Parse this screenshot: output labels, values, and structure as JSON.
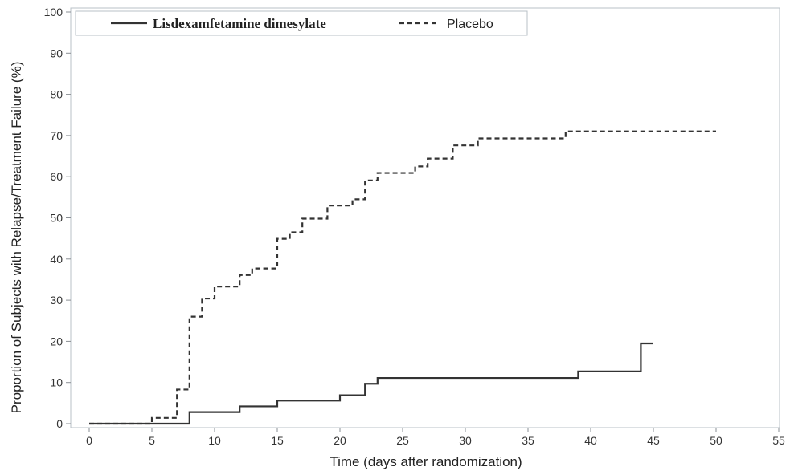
{
  "chart_data": {
    "type": "line",
    "title": "",
    "xlabel": "Time (days after randomization)",
    "ylabel": "Proportion of Subjects with Relapse/Treatment Failure (%)",
    "xlim": [
      0,
      55
    ],
    "ylim": [
      0,
      100
    ],
    "x_ticks": [
      0,
      5,
      10,
      15,
      20,
      25,
      30,
      35,
      40,
      45,
      50,
      55
    ],
    "y_ticks": [
      0,
      10,
      20,
      30,
      40,
      50,
      60,
      70,
      80,
      90,
      100
    ],
    "grid": false,
    "legend_position": "top-left",
    "step": true,
    "series": [
      {
        "name": "Lisdexamfetamine dimesylate",
        "line_style": "solid",
        "color": "#333333",
        "points": [
          [
            0,
            0
          ],
          [
            8,
            0
          ],
          [
            8,
            2.8
          ],
          [
            12,
            2.8
          ],
          [
            12,
            4.2
          ],
          [
            15,
            4.2
          ],
          [
            15,
            5.6
          ],
          [
            20,
            5.6
          ],
          [
            20,
            6.9
          ],
          [
            22,
            6.9
          ],
          [
            22,
            9.7
          ],
          [
            23,
            9.7
          ],
          [
            23,
            11.1
          ],
          [
            39,
            11.1
          ],
          [
            39,
            12.7
          ],
          [
            44,
            12.7
          ],
          [
            44,
            19.5
          ],
          [
            45,
            19.5
          ]
        ]
      },
      {
        "name": "Placebo",
        "line_style": "dashed",
        "color": "#333333",
        "points": [
          [
            0,
            0
          ],
          [
            5,
            0
          ],
          [
            5,
            1.4
          ],
          [
            7,
            1.4
          ],
          [
            7,
            8.3
          ],
          [
            8,
            8.3
          ],
          [
            8,
            26
          ],
          [
            9,
            26
          ],
          [
            9,
            30.4
          ],
          [
            10,
            30.4
          ],
          [
            10,
            33.3
          ],
          [
            12,
            33.3
          ],
          [
            12,
            36.1
          ],
          [
            13,
            36.1
          ],
          [
            13,
            37.7
          ],
          [
            15,
            37.7
          ],
          [
            15,
            44.9
          ],
          [
            16,
            44.9
          ],
          [
            16,
            46.5
          ],
          [
            17,
            46.5
          ],
          [
            17,
            49.8
          ],
          [
            19,
            49.8
          ],
          [
            19,
            53
          ],
          [
            21,
            53
          ],
          [
            21,
            54.5
          ],
          [
            22,
            54.5
          ],
          [
            22,
            59.1
          ],
          [
            23,
            59.1
          ],
          [
            23,
            60.9
          ],
          [
            26,
            60.9
          ],
          [
            26,
            62.5
          ],
          [
            27,
            62.5
          ],
          [
            27,
            64.4
          ],
          [
            29,
            64.4
          ],
          [
            29,
            67.6
          ],
          [
            31,
            67.6
          ],
          [
            31,
            69.3
          ],
          [
            38,
            69.3
          ],
          [
            38,
            71
          ],
          [
            50,
            71
          ]
        ]
      }
    ]
  }
}
